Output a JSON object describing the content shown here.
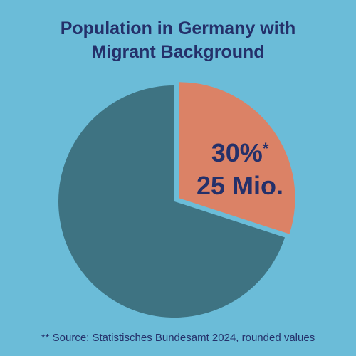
{
  "chart_data": {
    "type": "pie",
    "title_line1": "Population in Germany with",
    "title_line2": "Migrant Background",
    "slices": [
      {
        "label": "30%",
        "value": 30,
        "color": "#db8266",
        "exploded": true
      },
      {
        "label": "",
        "value": 70,
        "color": "#3e7382",
        "exploded": false
      }
    ],
    "annotations": {
      "percent": "30%",
      "asterisk": "*",
      "count": "25 Mio."
    },
    "footnote": "** Source: Statistisches Bundesamt 2024, rounded values"
  }
}
